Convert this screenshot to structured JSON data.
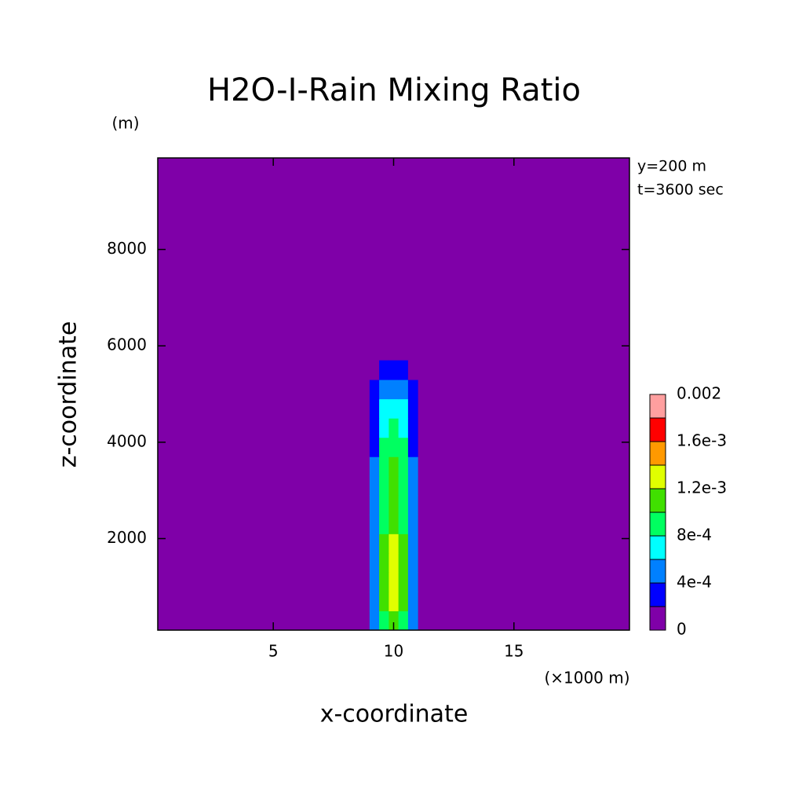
{
  "chart_data": {
    "type": "contour",
    "title": "H2O-I-Rain Mixing Ratio",
    "y_unit": "(m)",
    "x_unit": "(×1000 m)",
    "xlabel": "x-coordinate",
    "ylabel": "z-coordinate",
    "annotations": [
      "y=200 m",
      "t=3600 sec"
    ],
    "xlim": [
      0.2,
      19.8
    ],
    "ylim": [
      100,
      9900
    ],
    "xticks": [
      5,
      10,
      15
    ],
    "yticks": [
      2000,
      4000,
      6000,
      8000
    ],
    "grid": false,
    "field": {
      "x": [
        9.2,
        9.6,
        10.0,
        10.4,
        10.8
      ],
      "z": [
        300,
        700,
        1100,
        1500,
        1900,
        2300,
        2700,
        3100,
        3500,
        3900,
        4300,
        4700,
        5100,
        5500
      ],
      "values": [
        [
          0.0005,
          0.0009,
          0.0011,
          0.0009,
          0.0005
        ],
        [
          0.0005,
          0.001,
          0.0013,
          0.001,
          0.0005
        ],
        [
          0.0005,
          0.001,
          0.0013,
          0.001,
          0.0005
        ],
        [
          0.0005,
          0.001,
          0.0013,
          0.001,
          0.0005
        ],
        [
          0.0005,
          0.001,
          0.0013,
          0.001,
          0.0005
        ],
        [
          0.0005,
          0.0009,
          0.0011,
          0.0009,
          0.0005
        ],
        [
          0.0004,
          0.0009,
          0.0011,
          0.0009,
          0.0004
        ],
        [
          0.0004,
          0.0009,
          0.0011,
          0.0009,
          0.0004
        ],
        [
          0.0004,
          0.0009,
          0.0011,
          0.0008,
          0.0004
        ],
        [
          0.0003,
          0.0008,
          0.0009,
          0.0008,
          0.0003
        ],
        [
          0.0003,
          0.0007,
          0.0009,
          0.0007,
          0.0003
        ],
        [
          0.0003,
          0.0007,
          0.0007,
          0.0006,
          0.0003
        ],
        [
          0.0002,
          0.0005,
          0.0005,
          0.0005,
          0.0002
        ],
        [
          0,
          0.0003,
          0.0003,
          0.0003,
          0
        ]
      ]
    },
    "colorbar": {
      "levels": [
        0,
        0.0002,
        0.0004,
        0.0006,
        0.0008,
        0.001,
        0.0012,
        0.0014,
        0.0016,
        0.0018,
        0.002
      ],
      "colors": [
        "#7f00a8",
        "#0000ff",
        "#0080ff",
        "#00ffff",
        "#00ff60",
        "#40e000",
        "#e0ff00",
        "#ff9900",
        "#ff0000",
        "#ff9f9f"
      ],
      "ticks": [
        0,
        {
          "value": 0.0004,
          "label": "4e-4"
        },
        {
          "value": 0.0008,
          "label": "8e-4"
        },
        {
          "value": 0.0012,
          "label": "1.2e-3"
        },
        {
          "value": 0.0016,
          "label": "1.6e-3"
        },
        0.002
      ]
    }
  }
}
